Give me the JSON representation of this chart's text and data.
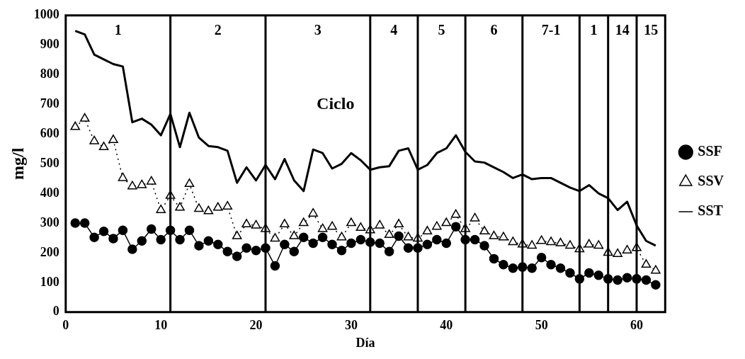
{
  "chart_data": {
    "type": "line",
    "xlabel": "Día",
    "ylabel": "mg/l",
    "x": [
      1,
      2,
      3,
      4,
      5,
      6,
      7,
      8,
      9,
      10,
      11,
      12,
      13,
      14,
      15,
      16,
      17,
      18,
      19,
      20,
      21,
      22,
      23,
      24,
      25,
      26,
      27,
      28,
      29,
      30,
      31,
      32,
      33,
      34,
      35,
      36,
      37,
      38,
      39,
      40,
      41,
      42,
      43,
      44,
      45,
      46,
      47,
      48,
      49,
      50,
      51,
      52,
      53,
      54,
      55,
      56,
      57,
      58,
      59,
      60,
      61,
      62
    ],
    "series": [
      {
        "name": "SSF",
        "color": "#000000",
        "marker": "circle",
        "line_style": "solid",
        "values": [
          300,
          300,
          252,
          272,
          248,
          276,
          212,
          240,
          280,
          244,
          276,
          244,
          276,
          224,
          240,
          228,
          204,
          188,
          216,
          208,
          216,
          156,
          228,
          204,
          252,
          232,
          252,
          228,
          208,
          232,
          244,
          236,
          232,
          204,
          256,
          216,
          216,
          228,
          244,
          232,
          288,
          244,
          244,
          224,
          180,
          160,
          148,
          152,
          148,
          184,
          160,
          148,
          132,
          112,
          132,
          124,
          112,
          108,
          116,
          112,
          108,
          92
        ]
      },
      {
        "name": "SSV",
        "color": "#000000",
        "marker": "triangle",
        "line_style": "dotted",
        "values": [
          624,
          652,
          576,
          556,
          580,
          452,
          424,
          428,
          440,
          344,
          392,
          352,
          432,
          348,
          340,
          352,
          356,
          256,
          296,
          292,
          280,
          248,
          296,
          256,
          300,
          332,
          280,
          288,
          252,
          300,
          284,
          276,
          292,
          260,
          296,
          252,
          248,
          272,
          288,
          300,
          328,
          280,
          316,
          272,
          256,
          252,
          236,
          228,
          224,
          240,
          236,
          232,
          224,
          212,
          228,
          224,
          200,
          196,
          208,
          216,
          160,
          140
        ]
      },
      {
        "name": "SST",
        "color": "#000000",
        "marker": "none",
        "line_style": "solid",
        "values": [
          948,
          936,
          868,
          852,
          836,
          828,
          640,
          652,
          632,
          596,
          668,
          556,
          672,
          588,
          560,
          556,
          544,
          436,
          488,
          444,
          496,
          448,
          516,
          444,
          408,
          548,
          536,
          484,
          500,
          536,
          512,
          480,
          488,
          492,
          544,
          552,
          480,
          496,
          536,
          552,
          596,
          540,
          508,
          504,
          488,
          472,
          452,
          464,
          448,
          452,
          452,
          436,
          420,
          408,
          428,
          400,
          384,
          344,
          372,
          292,
          240,
          224
        ]
      }
    ],
    "xlim": [
      0,
      63
    ],
    "xticks": [
      0,
      10,
      20,
      30,
      40,
      50,
      60
    ],
    "ylim": [
      0,
      1000
    ],
    "yticks": [
      0,
      100,
      200,
      300,
      400,
      500,
      600,
      700,
      800,
      900,
      1000
    ],
    "grid": false,
    "legend": "right",
    "ref_lines": [
      {
        "axis": "x",
        "value": 11
      },
      {
        "axis": "x",
        "value": 21
      },
      {
        "axis": "x",
        "value": 32
      },
      {
        "axis": "x",
        "value": 37
      },
      {
        "axis": "x",
        "value": 42
      },
      {
        "axis": "x",
        "value": 48
      },
      {
        "axis": "x",
        "value": 54
      },
      {
        "axis": "x",
        "value": 57
      },
      {
        "axis": "x",
        "value": 60
      }
    ],
    "annotations": [
      "1",
      "2",
      "3",
      "4",
      "5",
      "6",
      "7-1",
      "1",
      "14",
      "15",
      "Ciclo"
    ]
  }
}
